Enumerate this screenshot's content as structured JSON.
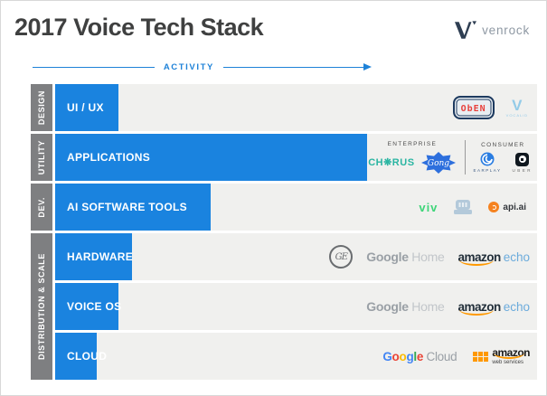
{
  "header": {
    "title": "2017 Voice Tech Stack",
    "brand_wordmark": "venrock"
  },
  "axis": {
    "label": "ACTIVITY"
  },
  "colors": {
    "bar": "#1a83df",
    "category": "#7e7f81",
    "row_bg": "#f0f0ee",
    "axis": "#1e82d8",
    "title": "#3f4040",
    "chorus": "#2ab5a2",
    "gong": "#2d6fdd",
    "viv": "#3ed579",
    "apiai_orange": "#f5821f",
    "amazon_dark": "#222f3a",
    "amazon_orange": "#ff9900",
    "echo_blue": "#6babdc",
    "google_gray": "#9aa0a6",
    "home_gray": "#c2c6ca",
    "gblue": "#4285f4",
    "gred": "#ea4335",
    "gyellow": "#fbbc05",
    "ggreen": "#34a853",
    "venrock_navy": "#2e3e52",
    "venrock_gray": "#8e98a3",
    "oben_red": "#e8413c",
    "oben_navy": "#1d3a5f",
    "vocalid_blue": "#93cbe8",
    "earplay_blue": "#2a7de1",
    "uber_black": "#10181f",
    "ge_gray": "#6a6d70",
    "tool_gray": "#b3c9da"
  },
  "categories": [
    {
      "label": "DESIGN"
    },
    {
      "label": "UTILITY"
    },
    {
      "label": "DEV."
    },
    {
      "label": "DISTRIBUTION & SCALE"
    }
  ],
  "rows": [
    {
      "label": "UI / UX",
      "activity_pct": 13.1
    },
    {
      "label": "APPLICATIONS",
      "activity_pct": 64.7,
      "enterprise_label": "ENTERPRISE",
      "consumer_label": "CONSUMER"
    },
    {
      "label": "AI SOFTWARE TOOLS",
      "activity_pct": 32.3
    },
    {
      "label": "HARDWARE",
      "activity_pct": 15.9
    },
    {
      "label": "VOICE OS",
      "activity_pct": 13.1
    },
    {
      "label": "CLOUD",
      "activity_pct": 8.6
    }
  ],
  "logos": {
    "oben": {
      "text": "ObEN"
    },
    "vocalid": {
      "mark": "V",
      "caption": "VOCALiD"
    },
    "chorus": {
      "display": "CH❋RUS"
    },
    "gong": {
      "text": "Gong"
    },
    "earplay": {
      "caption": "EARPLAY"
    },
    "uber": {
      "caption": "UBER"
    },
    "viv": {
      "text": "viv"
    },
    "apiai": {
      "text": "api.ai"
    },
    "ge": {
      "monogram": "GE"
    },
    "google_home": {
      "google": "Google",
      "home": "Home"
    },
    "amazon_echo": {
      "amazon": "amazon",
      "echo": "echo"
    },
    "google_cloud": {
      "letters": [
        "G",
        "o",
        "o",
        "g",
        "l",
        "e"
      ],
      "cloud": "Cloud"
    },
    "aws": {
      "amazon": "amazon",
      "caption": "web services"
    }
  },
  "chart_data": {
    "type": "bar",
    "orientation": "horizontal",
    "axis_label": "ACTIVITY",
    "title": "2017 Voice Tech Stack",
    "categories": [
      "UI / UX",
      "APPLICATIONS",
      "AI SOFTWARE TOOLS",
      "HARDWARE",
      "VOICE OS",
      "CLOUD"
    ],
    "values": [
      13.1,
      64.7,
      32.3,
      15.9,
      13.1,
      8.6
    ],
    "value_unit": "percent of row width (relative activity, no numeric axis)",
    "layers": [
      {
        "layer": "DESIGN",
        "rows": [
          "UI / UX"
        ],
        "logos": [
          "ObEN",
          "VocaliD"
        ]
      },
      {
        "layer": "UTILITY",
        "rows": [
          "APPLICATIONS"
        ],
        "logos": [
          "Chorus (ENTERPRISE)",
          "Gong (ENTERPRISE)",
          "Earplay (CONSUMER)",
          "Uber (CONSUMER)"
        ]
      },
      {
        "layer": "DEV.",
        "rows": [
          "AI SOFTWARE TOOLS"
        ],
        "logos": [
          "viv",
          "typewriter-logo",
          "api.ai"
        ]
      },
      {
        "layer": "DISTRIBUTION & SCALE",
        "rows": [
          "HARDWARE",
          "VOICE OS",
          "CLOUD"
        ],
        "logos": [
          "GE",
          "Google Home",
          "Amazon Echo",
          "Google Cloud",
          "Amazon Web Services"
        ]
      }
    ]
  }
}
